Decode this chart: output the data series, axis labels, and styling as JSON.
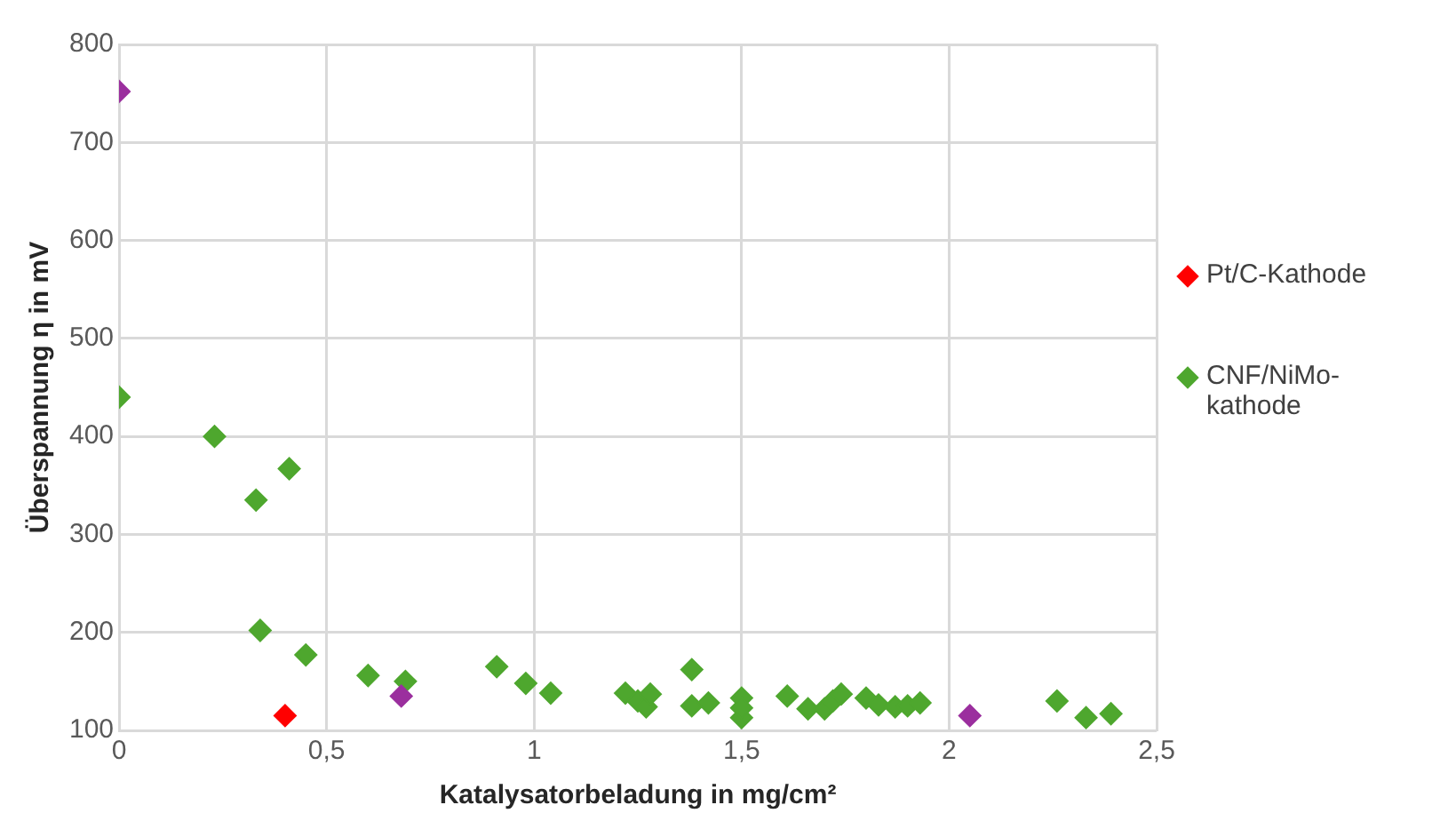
{
  "chart_data": {
    "type": "scatter",
    "xlabel": "Katalysatorbeladung in mg/cm²",
    "ylabel": "Überspannung η in mV",
    "xlim": [
      0,
      2.5
    ],
    "xticks": [
      0,
      {
        "value": 0.5,
        "label": "0,5"
      },
      1,
      {
        "value": 1.5,
        "label": "1,5"
      },
      2,
      {
        "value": 2.5,
        "label": "2,5"
      }
    ],
    "ylim": [
      100,
      800
    ],
    "yticks": [
      100,
      200,
      300,
      400,
      500,
      600,
      700,
      800
    ],
    "grid": true,
    "legend": "right",
    "marker": "diamond",
    "series": [
      {
        "color": "#9b2f9e",
        "x": [
          0,
          0.68,
          2.05
        ],
        "values": [
          752,
          135,
          115
        ]
      },
      {
        "name": "Pt/C-Kathode",
        "color": "#ff0000",
        "x": [
          0.4
        ],
        "values": [
          115
        ]
      },
      {
        "name": "CNF/NiMo-kathode",
        "color": "#4ea72e",
        "x": [
          0,
          0.23,
          0.33,
          0.41,
          0.34,
          0.45,
          0.6,
          0.69,
          0.91,
          0.98,
          1.04,
          1.22,
          1.25,
          1.27,
          1.28,
          1.38,
          1.38,
          1.42,
          1.5,
          1.5,
          1.5,
          1.61,
          1.66,
          1.7,
          1.72,
          1.74,
          1.8,
          1.83,
          1.87,
          1.9,
          1.93,
          2.26,
          2.33,
          2.39
        ],
        "values": [
          440,
          400,
          335,
          367,
          202,
          177,
          156,
          150,
          165,
          148,
          138,
          138,
          130,
          124,
          137,
          162,
          125,
          128,
          133,
          113,
          123,
          135,
          122,
          122,
          130,
          137,
          133,
          126,
          124,
          125,
          128,
          130,
          113,
          117
        ]
      }
    ]
  }
}
